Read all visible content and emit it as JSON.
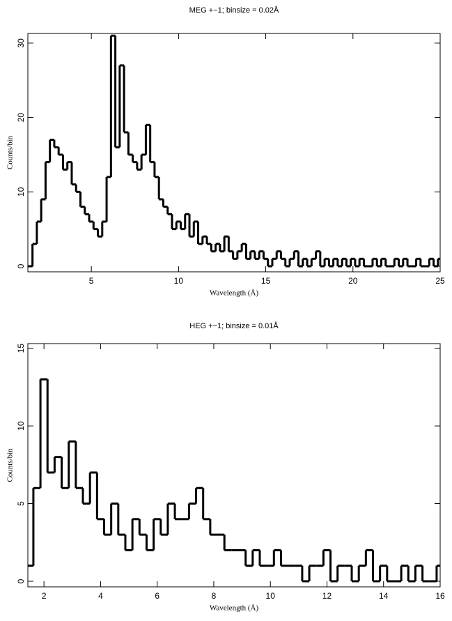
{
  "chart_data": [
    {
      "type": "line",
      "title": "MEG +−1; binsize = 0.02Å",
      "x_label": "Wavelength (Å)",
      "y_label": "Counts/bin",
      "color": "#000000",
      "x": [
        1.5,
        1.75,
        2.0,
        2.25,
        2.5,
        2.75,
        3.0,
        3.25,
        3.5,
        3.75,
        4.0,
        4.25,
        4.5,
        4.75,
        5.0,
        5.25,
        5.5,
        5.75,
        6.0,
        6.25,
        6.5,
        6.75,
        7.0,
        7.25,
        7.5,
        7.75,
        8.0,
        8.25,
        8.5,
        8.75,
        9.0,
        9.25,
        9.5,
        9.75,
        10.0,
        10.25,
        10.5,
        10.75,
        11.0,
        11.25,
        11.5,
        11.75,
        12.0,
        12.25,
        12.5,
        12.75,
        13.0,
        13.25,
        13.5,
        13.75,
        14.0,
        14.25,
        14.5,
        14.75,
        15.0,
        15.25,
        15.5,
        15.75,
        16.0,
        16.25,
        16.5,
        16.75,
        17.0,
        17.25,
        17.5,
        17.75,
        18.0,
        18.25,
        18.5,
        18.75,
        19.0,
        19.25,
        19.5,
        19.75,
        20.0,
        20.25,
        20.5,
        20.75,
        21.0,
        21.25,
        21.5,
        21.75,
        22.0,
        22.25,
        22.5,
        22.75,
        23.0,
        23.25,
        23.5,
        23.75,
        24.0,
        24.25,
        24.5,
        24.75,
        25.0
      ],
      "values": [
        0,
        3,
        6,
        9,
        14,
        17,
        16,
        15,
        13,
        14,
        11,
        10,
        8,
        7,
        6,
        5,
        4,
        6,
        12,
        31,
        16,
        27,
        18,
        15,
        14,
        13,
        15,
        19,
        14,
        12,
        9,
        8,
        7,
        5,
        6,
        5,
        7,
        4,
        6,
        3,
        4,
        3,
        2,
        3,
        2,
        4,
        2,
        1,
        2,
        3,
        1,
        2,
        1,
        2,
        1,
        0,
        1,
        2,
        1,
        0,
        1,
        2,
        0,
        1,
        0,
        1,
        2,
        0,
        1,
        0,
        1,
        0,
        1,
        0,
        1,
        0,
        1,
        0,
        0,
        1,
        0,
        1,
        0,
        0,
        1,
        0,
        1,
        0,
        0,
        1,
        0,
        0,
        1,
        0,
        1
      ],
      "xlim": [
        1.36,
        25
      ],
      "ylim": [
        -0.75,
        31.3
      ],
      "xticks": [
        5,
        10,
        15,
        20,
        25
      ],
      "yticks": [
        0,
        10,
        20,
        30
      ]
    },
    {
      "type": "line",
      "title": "HEG +−1; binsize = 0.01Å",
      "x_label": "Wavelength (Å)",
      "y_label": "Counts/bin",
      "color": "#000000",
      "x": [
        1.5,
        1.75,
        2.0,
        2.25,
        2.5,
        2.75,
        3.0,
        3.25,
        3.5,
        3.75,
        4.0,
        4.25,
        4.5,
        4.75,
        5.0,
        5.25,
        5.5,
        5.75,
        6.0,
        6.25,
        6.5,
        6.75,
        7.0,
        7.25,
        7.5,
        7.75,
        8.0,
        8.25,
        8.5,
        8.75,
        9.0,
        9.25,
        9.5,
        9.75,
        10.0,
        10.25,
        10.5,
        10.75,
        11.0,
        11.25,
        11.5,
        11.75,
        12.0,
        12.25,
        12.5,
        12.75,
        13.0,
        13.25,
        13.5,
        13.75,
        14.0,
        14.25,
        14.5,
        14.75,
        15.0,
        15.25,
        15.5,
        15.75,
        16.0
      ],
      "values": [
        1,
        6,
        13,
        7,
        8,
        6,
        9,
        6,
        5,
        7,
        4,
        3,
        5,
        3,
        2,
        4,
        3,
        2,
        4,
        3,
        5,
        4,
        4,
        5,
        6,
        4,
        3,
        3,
        2,
        2,
        2,
        1,
        2,
        1,
        1,
        2,
        1,
        1,
        1,
        0,
        1,
        1,
        2,
        0,
        1,
        1,
        0,
        1,
        2,
        0,
        1,
        0,
        0,
        1,
        0,
        1,
        0,
        0,
        1
      ],
      "xlim": [
        1.43,
        16
      ],
      "ylim": [
        -0.36,
        15.3
      ],
      "xticks": [
        2,
        4,
        6,
        8,
        10,
        12,
        14,
        16
      ],
      "yticks": [
        0,
        5,
        10,
        15
      ]
    }
  ]
}
